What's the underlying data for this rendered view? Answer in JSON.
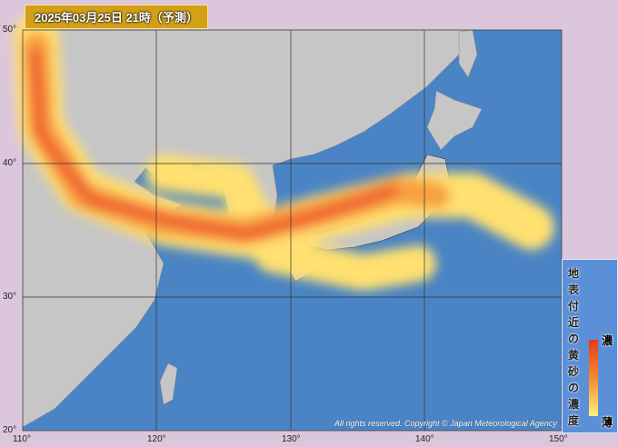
{
  "header": {
    "title": "2025年03月25日 21時（予測）"
  },
  "axes": {
    "lon_ticks": [
      "110°",
      "120°",
      "130°",
      "140°",
      "150°"
    ],
    "lat_ticks": [
      "50°",
      "40°",
      "30°",
      "20°"
    ]
  },
  "legend": {
    "title": "地表付近の黄砂の濃度",
    "high": "濃",
    "low": "薄",
    "colors": [
      "#e83a1e",
      "#f48a2a",
      "#fff27a"
    ]
  },
  "copyright": "All rights reserved. Copyright © Japan Meteorological Agency",
  "colors": {
    "ocean": "#4a84c4",
    "land": "#c8c8c8",
    "background": "#dcc6dc"
  }
}
